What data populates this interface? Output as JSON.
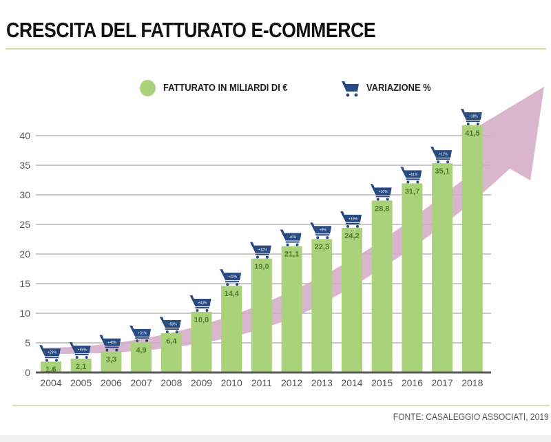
{
  "header": {
    "title": "CRESCITA DEL FATTURATO E-COMMERCE"
  },
  "legend": {
    "items": [
      {
        "label": "FATTURATO IN MILIARDI DI €",
        "icon": "green-circle",
        "color": "#a9d27a"
      },
      {
        "label": "VARIAZIONE %",
        "icon": "shopping-cart-icon",
        "color": "#2a4a82"
      }
    ]
  },
  "footer": {
    "source": "FONTE: CASALEGGIO ASSOCIATI, 2019"
  },
  "colors": {
    "bar": "#a9d27a",
    "bar_label": "#4d7a2c",
    "cart": "#2a4a82",
    "arrow": "#d3a8c6",
    "grid": "#a6a6a6",
    "axis": "#595959"
  },
  "chart_data": {
    "type": "bar",
    "title": "CRESCITA DEL FATTURATO E-COMMERCE",
    "xlabel": "",
    "ylabel": "",
    "ylim": [
      0,
      45
    ],
    "yticks": [
      0,
      5,
      10,
      15,
      20,
      25,
      30,
      35,
      40
    ],
    "grid": true,
    "legend_position": "top",
    "categories": [
      "2004",
      "2005",
      "2006",
      "2007",
      "2008",
      "2009",
      "2010",
      "2011",
      "2012",
      "2013",
      "2014",
      "2015",
      "2016",
      "2017",
      "2018"
    ],
    "series": [
      {
        "name": "FATTURATO IN MILIARDI DI €",
        "values": [
          1.6,
          2.1,
          3.3,
          4.9,
          6.4,
          10.0,
          14.4,
          19.0,
          21.1,
          22.3,
          24.2,
          28.8,
          31.7,
          35.1,
          41.5
        ],
        "value_labels": [
          "1,6",
          "2,1",
          "3,3",
          "4,9",
          "6,4",
          "10,0",
          "14,4",
          "19,0",
          "21,1",
          "22,3",
          "24,2",
          "28,8",
          "31,7",
          "35,1",
          "41,5"
        ]
      },
      {
        "name": "VARIAZIONE %",
        "values": [
          29,
          55,
          48,
          31,
          50,
          43,
          32,
          12,
          6,
          8,
          19,
          10,
          11,
          11,
          18
        ],
        "value_labels": [
          "+29%",
          "+55%",
          "+48%",
          "+31%",
          "+50%",
          "+43%",
          "+32%",
          "+12%",
          "+6%",
          "+8%",
          "+19%",
          "+10%",
          "+11%",
          "+11%",
          "+18%"
        ]
      }
    ],
    "annotations": [
      "upward trend arrow (pink) behind bars"
    ],
    "source": "FONTE: CASALEGGIO ASSOCIATI, 2019"
  }
}
